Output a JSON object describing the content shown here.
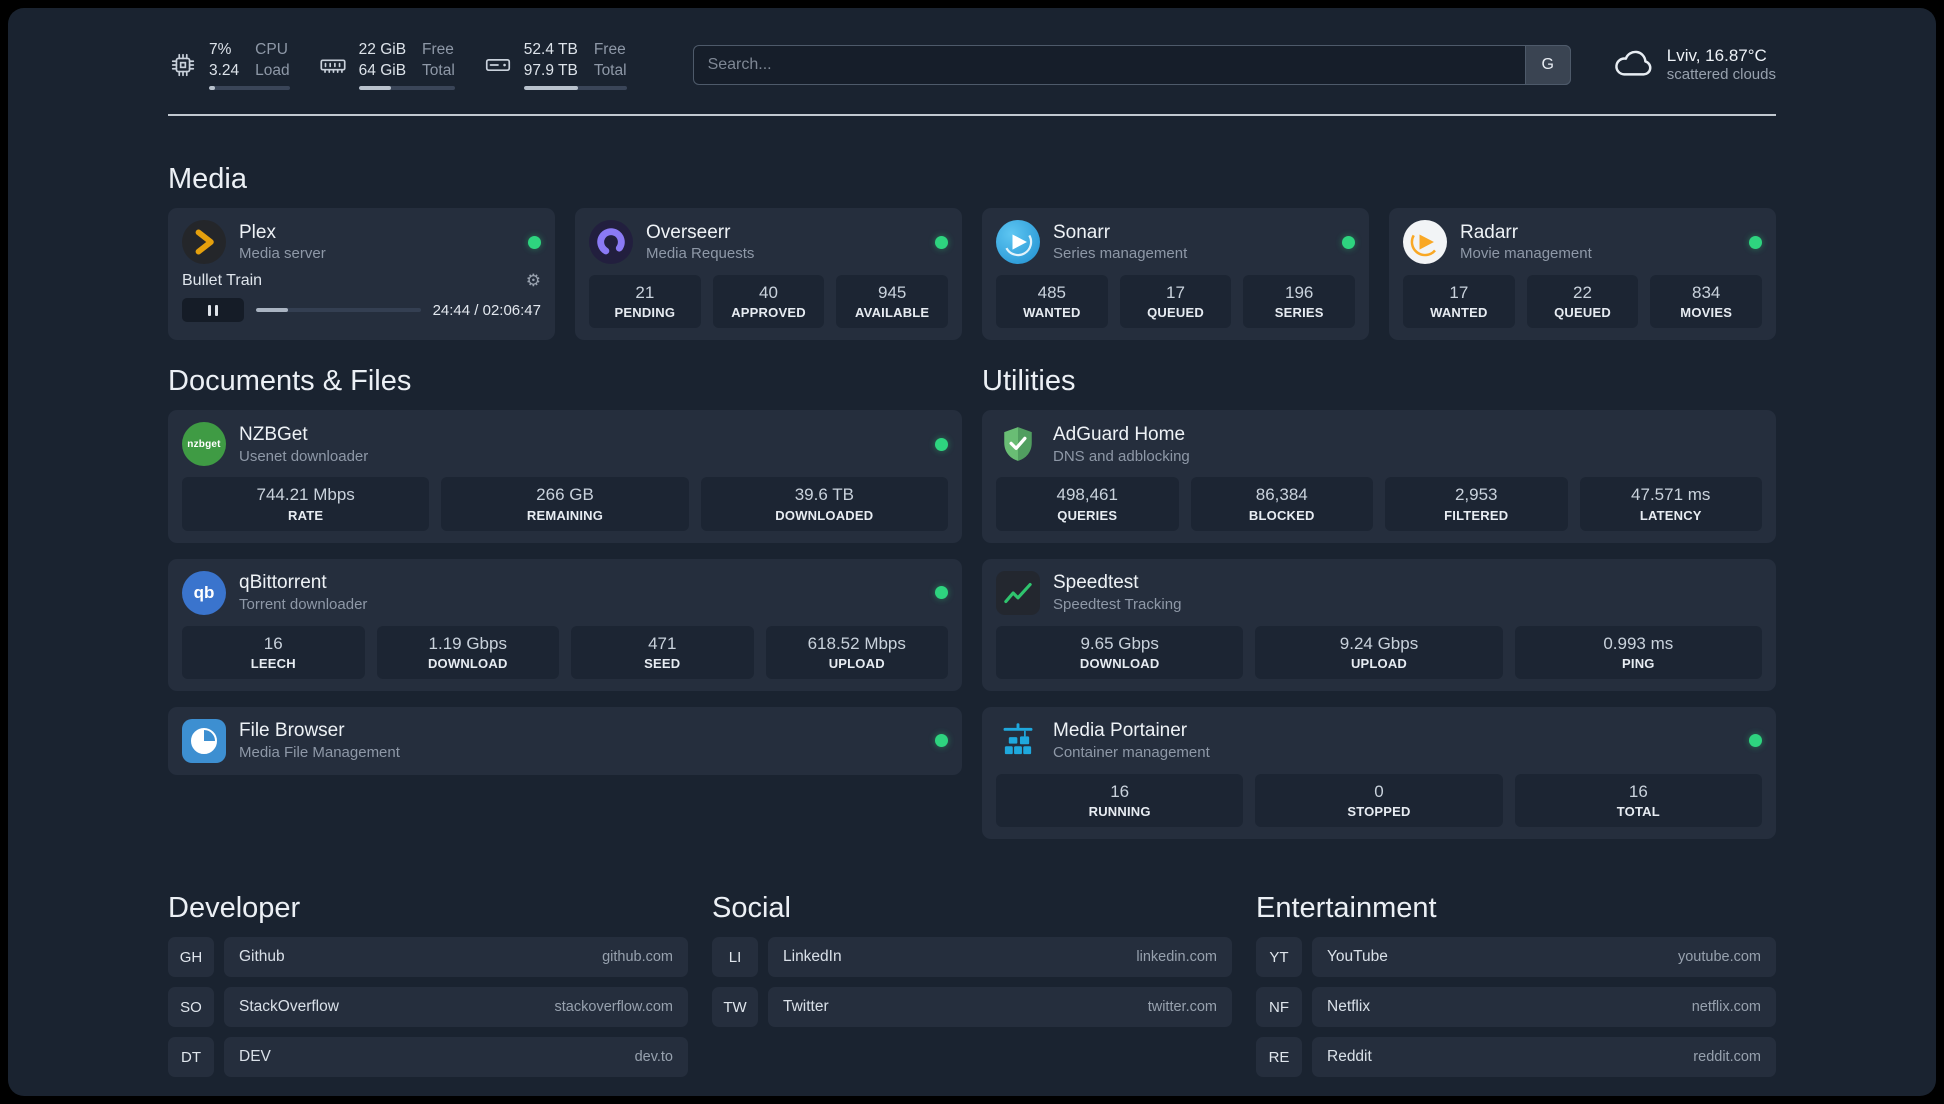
{
  "colors": {
    "accent_green": "#2ed47f",
    "plex_amber": "#e5a00d",
    "page_bg": "#1a2330",
    "card_bg": "#252e3d"
  },
  "topbar": {
    "cpu": {
      "value1": "7%",
      "value2": "3.24",
      "label1": "CPU",
      "label2": "Load",
      "bar": 7
    },
    "memory": {
      "value1": "22 GiB",
      "value2": "64 GiB",
      "label1": "Free",
      "label2": "Total",
      "bar": 34
    },
    "disk": {
      "value1": "52.4 TB",
      "value2": "97.9 TB",
      "label1": "Free",
      "label2": "Total",
      "bar": 53
    },
    "search": {
      "placeholder": "Search...",
      "provider": "G"
    },
    "weather": {
      "location": "Lviv, 16.87°C",
      "condition": "scattered clouds"
    }
  },
  "icons": {
    "nzbget_text": "nzbget",
    "qbittorrent_text": "qb"
  },
  "media": {
    "heading": "Media",
    "plex": {
      "name": "Plex",
      "desc": "Media server",
      "player": {
        "track": "Bullet Train",
        "time": "24:44 / 02:06:47",
        "progress": 19.5,
        "gear": "⚙"
      }
    },
    "overseerr": {
      "name": "Overseerr",
      "desc": "Media Requests",
      "stats": [
        {
          "value": "21",
          "label": "PENDING"
        },
        {
          "value": "40",
          "label": "APPROVED"
        },
        {
          "value": "945",
          "label": "AVAILABLE"
        }
      ]
    },
    "sonarr": {
      "name": "Sonarr",
      "desc": "Series management",
      "stats": [
        {
          "value": "485",
          "label": "WANTED"
        },
        {
          "value": "17",
          "label": "QUEUED"
        },
        {
          "value": "196",
          "label": "SERIES"
        }
      ]
    },
    "radarr": {
      "name": "Radarr",
      "desc": "Movie management",
      "stats": [
        {
          "value": "17",
          "label": "WANTED"
        },
        {
          "value": "22",
          "label": "QUEUED"
        },
        {
          "value": "834",
          "label": "MOVIES"
        }
      ]
    }
  },
  "documents": {
    "heading": "Documents & Files",
    "nzbget": {
      "name": "NZBGet",
      "desc": "Usenet downloader",
      "stats": [
        {
          "value": "744.21 Mbps",
          "label": "RATE"
        },
        {
          "value": "266 GB",
          "label": "REMAINING"
        },
        {
          "value": "39.6 TB",
          "label": "DOWNLOADED"
        }
      ]
    },
    "qbittorrent": {
      "name": "qBittorrent",
      "desc": "Torrent downloader",
      "stats": [
        {
          "value": "16",
          "label": "LEECH"
        },
        {
          "value": "1.19 Gbps",
          "label": "DOWNLOAD"
        },
        {
          "value": "471",
          "label": "SEED"
        },
        {
          "value": "618.52 Mbps",
          "label": "UPLOAD"
        }
      ]
    },
    "filebrowser": {
      "name": "File Browser",
      "desc": "Media File Management"
    }
  },
  "utilities": {
    "heading": "Utilities",
    "adguard": {
      "name": "AdGuard Home",
      "desc": "DNS and adblocking",
      "stats": [
        {
          "value": "498,461",
          "label": "QUERIES"
        },
        {
          "value": "86,384",
          "label": "BLOCKED"
        },
        {
          "value": "2,953",
          "label": "FILTERED"
        },
        {
          "value": "47.571 ms",
          "label": "LATENCY"
        }
      ]
    },
    "speedtest": {
      "name": "Speedtest",
      "desc": "Speedtest Tracking",
      "stats": [
        {
          "value": "9.65 Gbps",
          "label": "DOWNLOAD"
        },
        {
          "value": "9.24 Gbps",
          "label": "UPLOAD"
        },
        {
          "value": "0.993 ms",
          "label": "PING"
        }
      ]
    },
    "portainer": {
      "name": "Media Portainer",
      "desc": "Container management",
      "stats": [
        {
          "value": "16",
          "label": "RUNNING"
        },
        {
          "value": "0",
          "label": "STOPPED"
        },
        {
          "value": "16",
          "label": "TOTAL"
        }
      ]
    }
  },
  "bookmarks": {
    "developer": {
      "title": "Developer",
      "items": [
        {
          "abbr": "GH",
          "name": "Github",
          "href": "github.com"
        },
        {
          "abbr": "SO",
          "name": "StackOverflow",
          "href": "stackoverflow.com"
        },
        {
          "abbr": "DT",
          "name": "DEV",
          "href": "dev.to"
        }
      ]
    },
    "social": {
      "title": "Social",
      "items": [
        {
          "abbr": "LI",
          "name": "LinkedIn",
          "href": "linkedin.com"
        },
        {
          "abbr": "TW",
          "name": "Twitter",
          "href": "twitter.com"
        }
      ]
    },
    "entertainment": {
      "title": "Entertainment",
      "items": [
        {
          "abbr": "YT",
          "name": "YouTube",
          "href": "youtube.com"
        },
        {
          "abbr": "NF",
          "name": "Netflix",
          "href": "netflix.com"
        },
        {
          "abbr": "RE",
          "name": "Reddit",
          "href": "reddit.com"
        }
      ]
    }
  }
}
